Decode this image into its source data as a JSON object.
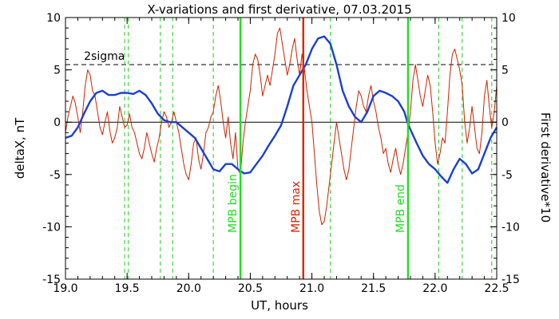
{
  "chart_data": {
    "type": "line",
    "title": "X-variations and first derivative, 07.03.2015",
    "xlabel": "UT, hours",
    "ylabel_left": "deltaX, nT",
    "ylabel_right": "First derivative*10",
    "xlim": [
      19.0,
      22.5
    ],
    "ylim_left": [
      -15,
      10
    ],
    "ylim_right": [
      -15,
      10
    ],
    "x_ticks": [
      "19.0",
      "19.5",
      "20.0",
      "20.5",
      "21.0",
      "21.5",
      "22.0",
      "22.5"
    ],
    "y_ticks": [
      "-15",
      "-10",
      "-5",
      "0",
      "5",
      "10"
    ],
    "colors": {
      "deltaX": "#1a3fd1",
      "derivative": "#cc2200",
      "mpb_begin_end": "#22dd22",
      "mpb_max": "#dd2200",
      "dashed_green": "#22cc22",
      "sigma": "#000000",
      "zero": "#000000"
    },
    "sigma": {
      "label": "2sigma",
      "value": 5.5
    },
    "zero_line": 0,
    "vertical_lines": [
      {
        "label": "MPB begin",
        "x": 20.42,
        "color": "#22dd22"
      },
      {
        "label": "MPB max",
        "x": 20.93,
        "color": "#dd2200"
      },
      {
        "label": "MPB end",
        "x": 21.78,
        "color": "#22dd22"
      }
    ],
    "dashed_green_x": [
      19.48,
      19.51,
      19.77,
      19.87,
      20.2,
      21.15,
      22.03,
      22.22,
      22.46
    ],
    "series": [
      {
        "name": "deltaX, nT",
        "axis": "left",
        "x": [
          19.0,
          19.05,
          19.1,
          19.15,
          19.2,
          19.25,
          19.3,
          19.35,
          19.4,
          19.45,
          19.5,
          19.55,
          19.6,
          19.65,
          19.7,
          19.75,
          19.8,
          19.85,
          19.9,
          19.95,
          20.0,
          20.05,
          20.1,
          20.15,
          20.2,
          20.25,
          20.3,
          20.35,
          20.4,
          20.45,
          20.5,
          20.55,
          20.6,
          20.65,
          20.7,
          20.75,
          20.8,
          20.85,
          20.9,
          20.95,
          21.0,
          21.05,
          21.1,
          21.15,
          21.2,
          21.25,
          21.3,
          21.35,
          21.4,
          21.45,
          21.5,
          21.55,
          21.6,
          21.65,
          21.7,
          21.75,
          21.78,
          21.85,
          21.9,
          21.95,
          22.0,
          22.05,
          22.1,
          22.15,
          22.2,
          22.25,
          22.3,
          22.35,
          22.4,
          22.45,
          22.5
        ],
        "y": [
          -1.5,
          -1.3,
          -0.5,
          0.8,
          2.0,
          2.8,
          3.0,
          2.6,
          2.6,
          2.8,
          2.8,
          2.7,
          3.0,
          2.6,
          1.8,
          0.8,
          0.2,
          0.0,
          0.0,
          -0.5,
          -1.0,
          -1.5,
          -2.5,
          -3.5,
          -4.5,
          -4.7,
          -4.0,
          -4.0,
          -4.5,
          -4.9,
          -4.8,
          -4.0,
          -3.2,
          -2.2,
          -1.3,
          -0.3,
          1.5,
          3.5,
          4.5,
          5.5,
          7.0,
          8.0,
          8.2,
          7.5,
          5.5,
          3.0,
          1.5,
          0.5,
          0.0,
          1.0,
          2.5,
          3.0,
          2.8,
          2.5,
          2.0,
          1.0,
          -0.2,
          -2.0,
          -3.2,
          -4.0,
          -4.5,
          -5.2,
          -5.8,
          -4.5,
          -3.5,
          -4.0,
          -4.9,
          -4.5,
          -3.0,
          -1.5,
          -0.5
        ]
      },
      {
        "name": "First derivative*10",
        "axis": "right",
        "x": [
          19.0,
          19.02,
          19.04,
          19.06,
          19.08,
          19.1,
          19.12,
          19.14,
          19.16,
          19.18,
          19.2,
          19.22,
          19.24,
          19.26,
          19.28,
          19.3,
          19.32,
          19.34,
          19.36,
          19.38,
          19.4,
          19.42,
          19.44,
          19.46,
          19.48,
          19.5,
          19.52,
          19.54,
          19.56,
          19.58,
          19.6,
          19.62,
          19.64,
          19.66,
          19.68,
          19.7,
          19.72,
          19.74,
          19.76,
          19.78,
          19.8,
          19.82,
          19.84,
          19.86,
          19.88,
          19.9,
          19.92,
          19.94,
          19.96,
          19.98,
          20.0,
          20.02,
          20.04,
          20.06,
          20.08,
          20.1,
          20.12,
          20.14,
          20.16,
          20.18,
          20.2,
          20.22,
          20.24,
          20.26,
          20.28,
          20.3,
          20.32,
          20.34,
          20.36,
          20.38,
          20.4,
          20.42,
          20.44,
          20.46,
          20.48,
          20.5,
          20.52,
          20.54,
          20.56,
          20.58,
          20.6,
          20.62,
          20.64,
          20.66,
          20.68,
          20.7,
          20.72,
          20.74,
          20.76,
          20.78,
          20.8,
          20.82,
          20.84,
          20.86,
          20.88,
          20.9,
          20.92,
          20.94,
          20.96,
          20.98,
          21.0,
          21.02,
          21.04,
          21.06,
          21.08,
          21.1,
          21.12,
          21.14,
          21.16,
          21.18,
          21.2,
          21.22,
          21.24,
          21.26,
          21.28,
          21.3,
          21.32,
          21.34,
          21.36,
          21.38,
          21.4,
          21.42,
          21.44,
          21.46,
          21.48,
          21.5,
          21.52,
          21.54,
          21.56,
          21.58,
          21.6,
          21.62,
          21.64,
          21.66,
          21.68,
          21.7,
          21.72,
          21.74,
          21.76,
          21.78,
          21.8,
          21.82,
          21.84,
          21.86,
          21.88,
          21.9,
          21.92,
          21.94,
          21.96,
          21.98,
          22.0,
          22.02,
          22.04,
          22.06,
          22.08,
          22.1,
          22.12,
          22.14,
          22.16,
          22.18,
          22.2,
          22.22,
          22.24,
          22.26,
          22.28,
          22.3,
          22.32,
          22.34,
          22.36,
          22.38,
          22.4,
          22.42,
          22.44,
          22.46,
          22.48,
          22.5
        ],
        "y": [
          -1.0,
          0.5,
          1.5,
          2.5,
          1.8,
          0.5,
          -1.0,
          1.0,
          3.5,
          5.0,
          4.5,
          3.0,
          2.5,
          1.0,
          -0.5,
          -1.2,
          0.0,
          1.0,
          -0.8,
          -2.0,
          -1.5,
          -0.5,
          1.5,
          0.5,
          -0.5,
          -0.3,
          0.8,
          -0.5,
          -1.0,
          -2.0,
          -3.0,
          -3.5,
          -2.5,
          -1.0,
          -2.0,
          -3.0,
          -3.8,
          -2.5,
          -1.5,
          0.0,
          1.0,
          0.5,
          -0.5,
          0.0,
          1.0,
          0.0,
          -1.0,
          -2.5,
          -4.0,
          -5.0,
          -5.5,
          -4.0,
          -2.0,
          -1.5,
          -3.5,
          -4.5,
          -3.0,
          -1.0,
          -0.5,
          0.5,
          1.0,
          2.5,
          3.5,
          2.0,
          0.0,
          -1.5,
          0.5,
          -2.0,
          -3.5,
          -1.0,
          -4.5,
          -5.0,
          -2.0,
          0.0,
          1.5,
          3.0,
          5.5,
          6.5,
          6.0,
          4.5,
          2.5,
          3.5,
          4.5,
          3.5,
          5.0,
          6.5,
          8.5,
          9.0,
          7.5,
          6.0,
          4.5,
          5.5,
          7.0,
          8.0,
          6.0,
          4.5,
          6.5,
          5.0,
          3.0,
          1.5,
          0.0,
          -3.0,
          -6.0,
          -8.5,
          -9.8,
          -9.5,
          -8.0,
          -6.0,
          -4.0,
          -2.0,
          0.0,
          -1.5,
          -3.0,
          -4.5,
          -5.5,
          -4.5,
          -2.5,
          -0.5,
          1.5,
          3.0,
          2.5,
          1.5,
          1.0,
          2.5,
          3.5,
          2.0,
          1.0,
          -0.5,
          -1.5,
          -3.0,
          -2.5,
          -4.0,
          -4.8,
          -3.5,
          -2.5,
          -4.0,
          -5.0,
          -4.0,
          -2.5,
          -1.0,
          1.0,
          4.0,
          5.5,
          4.0,
          2.5,
          1.5,
          3.0,
          4.5,
          3.5,
          1.0,
          -2.0,
          -4.0,
          -3.0,
          -1.5,
          -2.0,
          1.0,
          4.5,
          6.5,
          7.0,
          6.0,
          5.0,
          3.5,
          0.0,
          -2.0,
          -0.5,
          1.5,
          -0.5,
          -2.5,
          -3.0,
          -1.0,
          2.5,
          4.0,
          1.5,
          -0.5,
          1.0,
          3.5
        ]
      }
    ]
  }
}
